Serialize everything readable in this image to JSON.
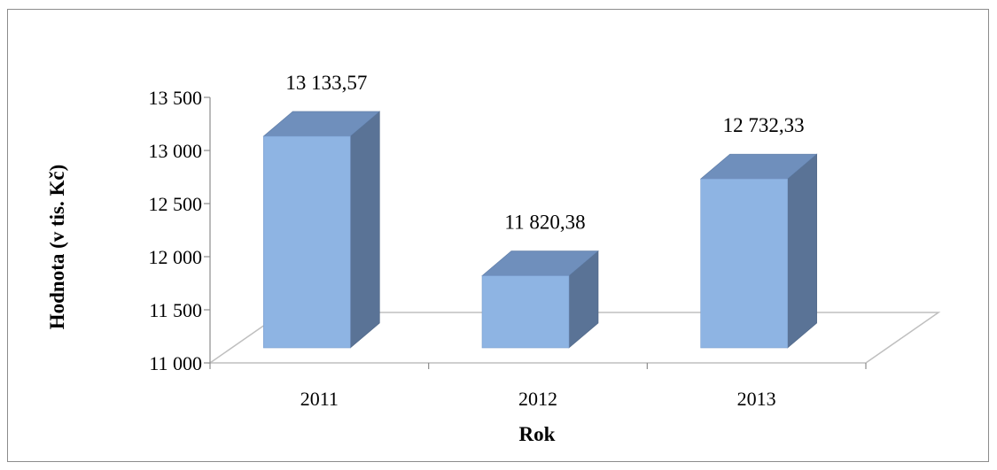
{
  "chart_data": {
    "type": "bar",
    "categories": [
      "2011",
      "2012",
      "2013"
    ],
    "values": [
      13133.57,
      11820.38,
      12732.33
    ],
    "value_labels": [
      "13 133,57",
      "11 820,38",
      "12 732,33"
    ],
    "title": "",
    "xlabel": "Rok",
    "ylabel": "Hodnota (v tis. Kč)",
    "ylim": [
      11000,
      13500
    ],
    "yticks": [
      11000,
      11500,
      12000,
      12500,
      13000,
      13500
    ],
    "ytick_labels": [
      "11 000",
      "11 500",
      "12 000",
      "12 500",
      "13 000",
      "13 500"
    ],
    "grid": false,
    "legend": "none",
    "style": "3d-column",
    "colors": {
      "front": "#8eb4e3",
      "top": "#6f8fbc",
      "side": "#5a7396",
      "floor": "#bfbfbf",
      "frame": "#8c8c8c"
    }
  }
}
